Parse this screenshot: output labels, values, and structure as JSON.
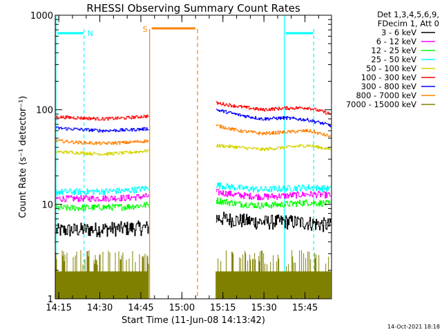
{
  "chart_data": {
    "type": "line",
    "title": "RHESSI Observing Summary Count Rates",
    "xlabel": "Start Time (11-Jun-08 14:13:42)",
    "ylabel": "Count Rate (s⁻¹ detector⁻¹)",
    "yscale": "log",
    "ylim": [
      1,
      1000
    ],
    "xlim_minutes": [
      0,
      101
    ],
    "x_tick_labels": [
      "14:15",
      "14:30",
      "14:45",
      "15:00",
      "15:15",
      "15:30",
      "15:45"
    ],
    "x_tick_minutes": [
      1.3,
      16.3,
      31.3,
      46.3,
      61.3,
      76.3,
      91.3
    ],
    "y_tick_labels": [
      "1",
      "10",
      "100",
      "1000"
    ],
    "y_tick_values": [
      1,
      10,
      100,
      1000
    ],
    "info_text": [
      "Det 1,3,4,5,6,9,",
      "FDecim 1, Att 0"
    ],
    "timestamp": "14-Oct-2021 18:18",
    "data_gaps_minutes": [
      [
        34.5,
        58.5
      ]
    ],
    "series": [
      {
        "name": "3 - 6 keV",
        "color": "#000000",
        "seg1": [
          5.3,
          5.4,
          5.5,
          5.6,
          5.7
        ],
        "seg2": [
          7.2,
          6.8,
          6.5,
          6.6,
          6.4,
          6.0
        ]
      },
      {
        "name": "6 - 12 keV",
        "color": "#ff00ff",
        "seg1": [
          11.5,
          11.5,
          11.6,
          11.7,
          12.2
        ],
        "seg2": [
          13.5,
          12.5,
          12.0,
          12.3,
          12.8,
          12.5
        ]
      },
      {
        "name": "12 - 25 keV",
        "color": "#00ff00",
        "seg1": [
          9.1,
          9.2,
          9.3,
          9.4,
          9.9
        ],
        "seg2": [
          11.0,
          10.1,
          9.7,
          10.0,
          10.5,
          10.1
        ]
      },
      {
        "name": "25 - 50 keV",
        "color": "#00ffff",
        "seg1": [
          13.5,
          13.6,
          13.7,
          13.9,
          14.9
        ],
        "seg2": [
          16.0,
          14.9,
          14.3,
          14.7,
          15.1,
          14.6
        ]
      },
      {
        "name": "50 - 100 keV",
        "color": "#d4d400",
        "seg1": [
          36,
          35,
          34,
          35,
          37
        ],
        "seg2": [
          42,
          40,
          38,
          40,
          42,
          38
        ]
      },
      {
        "name": "100 - 300 keV",
        "color": "#ff0000",
        "seg1": [
          84,
          82,
          80,
          82,
          86
        ],
        "seg2": [
          118,
          108,
          100,
          104,
          105,
          90
        ]
      },
      {
        "name": "300 - 800 keV",
        "color": "#0000ff",
        "seg1": [
          64,
          62,
          60,
          61,
          63
        ],
        "seg2": [
          100,
          88,
          80,
          82,
          78,
          68
        ]
      },
      {
        "name": "800 - 7000 keV",
        "color": "#ff8000",
        "seg1": [
          47,
          45,
          44,
          45,
          47
        ],
        "seg2": [
          68,
          60,
          56,
          58,
          60,
          52
        ]
      },
      {
        "name": "7000 - 15000 keV",
        "color": "#808000",
        "seg1": [
          1.95,
          1.95,
          1.95,
          1.95,
          1.95
        ],
        "seg2": [
          1.95,
          1.95,
          1.95,
          1.95,
          1.95,
          1.95
        ]
      }
    ],
    "annotations": [
      {
        "label": "N",
        "type": "night",
        "color": "#00ffff",
        "start_minute": 0,
        "end_minute": 10.5
      },
      {
        "label": "",
        "type": "night",
        "color": "#00ffff",
        "start_minute": 83.5,
        "end_minute": 94.5
      },
      {
        "label": "S",
        "type": "saa",
        "color": "#ff8000",
        "start_minute": 34.5,
        "end_minute": 52
      }
    ]
  }
}
